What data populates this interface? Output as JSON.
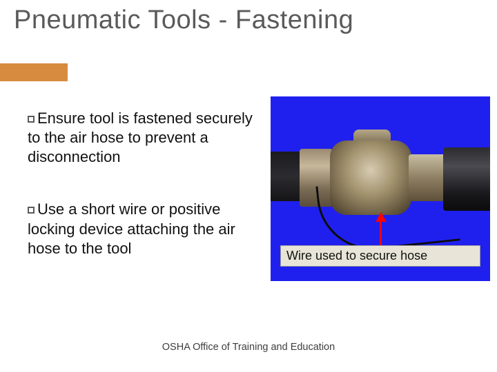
{
  "title": "Pneumatic Tools - Fastening",
  "accent_color": "#d78b3e",
  "bullets": [
    "Ensure tool is fastened securely to the air hose to prevent a disconnection",
    "Use a short wire or positive locking device attaching the air hose to the tool"
  ],
  "image": {
    "background_color": "#2020ee",
    "caption": "Wire used to secure hose",
    "caption_bg": "#e8e5d8",
    "arrow_color": "#ff0000"
  },
  "footer": "OSHA Office of Training and Education"
}
